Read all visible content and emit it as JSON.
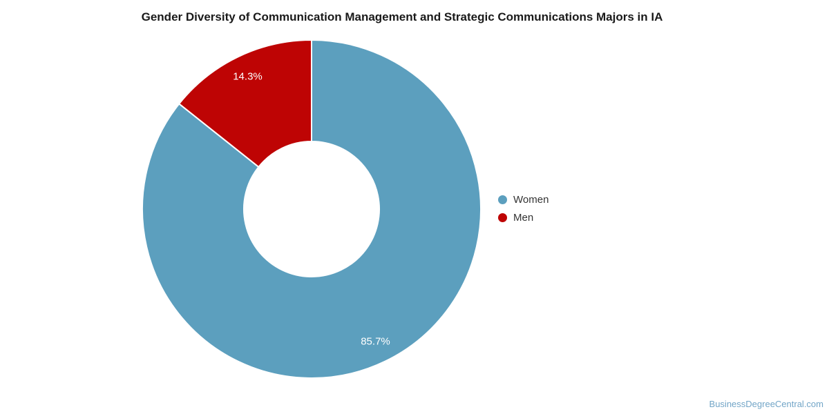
{
  "page": {
    "background_color": "#ffffff"
  },
  "chart_data": {
    "type": "pie",
    "subtype": "donut",
    "title": "Gender Diversity of Communication Management and Strategic Communications Majors in IA",
    "categories": [
      "Women",
      "Men"
    ],
    "values": [
      85.7,
      14.3
    ],
    "slice_labels": [
      "85.7%",
      "14.3%"
    ],
    "colors": [
      "#5C9FBE",
      "#BE0404"
    ],
    "start_angle_deg": 0,
    "direction": "clockwise",
    "inner_radius_ratio": 0.4,
    "slice_label_color": "#ffffff",
    "slice_border_color": "#ffffff",
    "legend": {
      "position": "right",
      "entries": [
        {
          "label": "Women",
          "color": "#5C9FBE"
        },
        {
          "label": "Men",
          "color": "#BE0404"
        }
      ]
    }
  },
  "footer": {
    "watermark": "BusinessDegreeCentral.com",
    "watermark_color": "#72A5C7"
  }
}
